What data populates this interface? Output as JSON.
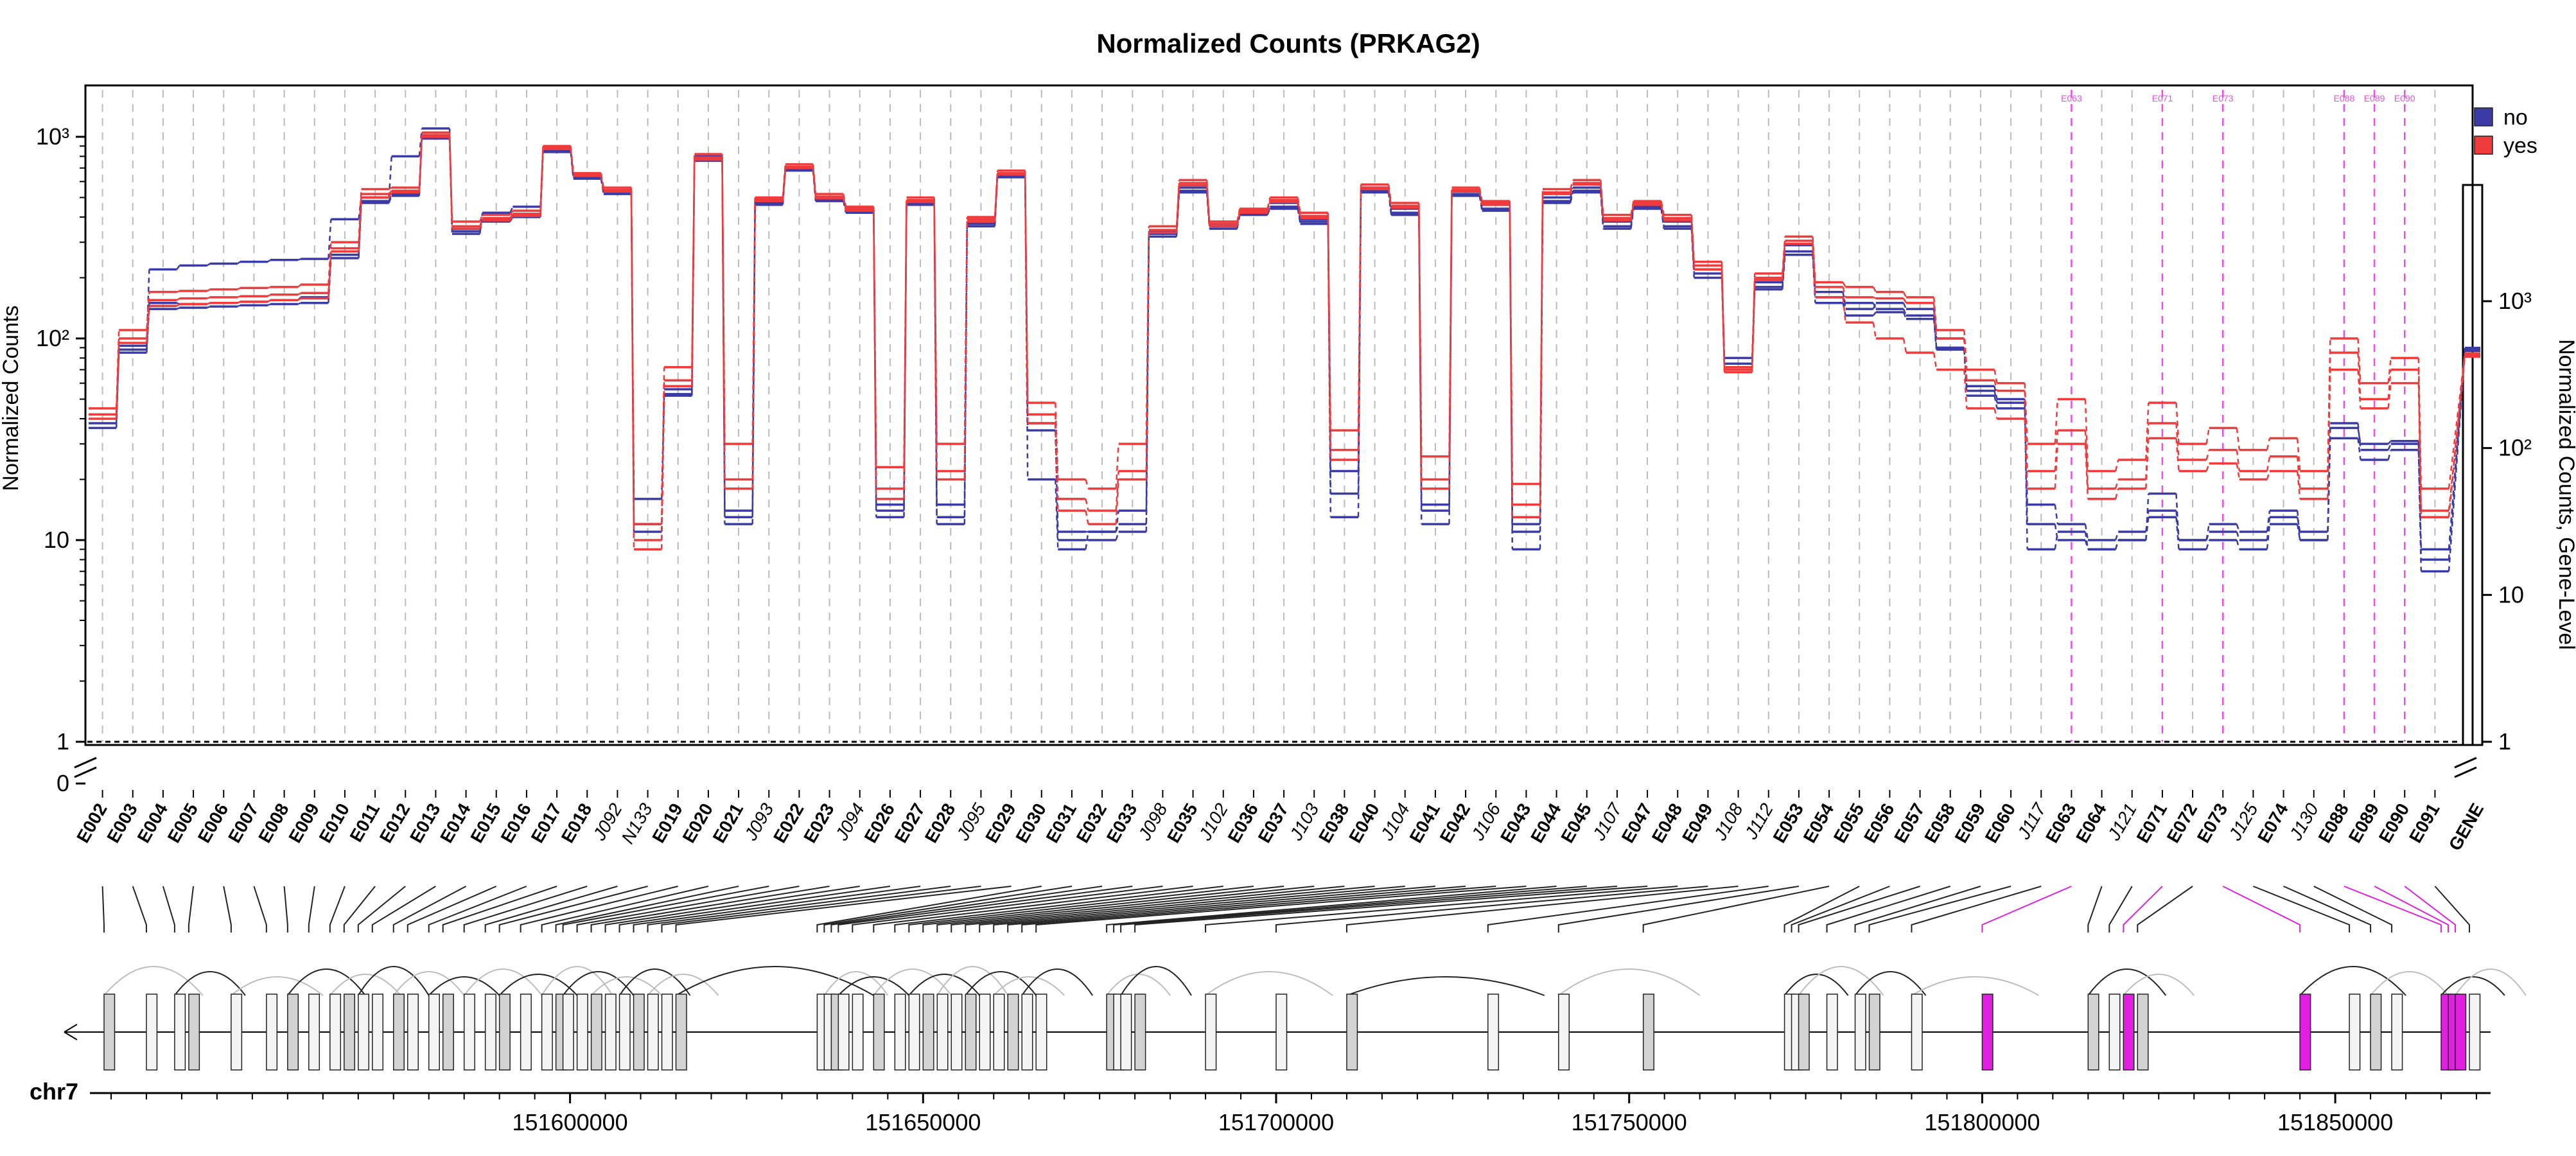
{
  "chart_data": {
    "type": "line",
    "title": "Normalized Counts (PRKAG2)",
    "ylabel": "Normalized Counts",
    "ylabel_right": "Normalized Counts, Gene-Level",
    "yscale": "log",
    "ylim": [
      1,
      1600
    ],
    "y_ticks": [
      "1",
      "10",
      "10²",
      "10³"
    ],
    "y_zero_label": "0",
    "y_ticks_right": [
      "1",
      "10",
      "10²",
      "10³"
    ],
    "legend": {
      "position": "top-right",
      "entries": [
        {
          "label": "no",
          "color": "#3b3ba8"
        },
        {
          "label": "yes",
          "color": "#ef3b3b"
        }
      ]
    },
    "features": [
      "E002",
      "E003",
      "E004",
      "E005",
      "E006",
      "E007",
      "E008",
      "E009",
      "E010",
      "E011",
      "E012",
      "E013",
      "E014",
      "E015",
      "E016",
      "E017",
      "E018",
      "J092",
      "N133",
      "E019",
      "E020",
      "E021",
      "J093",
      "E022",
      "E023",
      "J094",
      "E026",
      "E027",
      "E028",
      "J095",
      "E029",
      "E030",
      "E031",
      "E032",
      "E033",
      "J098",
      "E035",
      "J102",
      "E036",
      "E037",
      "J103",
      "E038",
      "E040",
      "J104",
      "E041",
      "E042",
      "J106",
      "E043",
      "E044",
      "E045",
      "J107",
      "E047",
      "E048",
      "E049",
      "J108",
      "J112",
      "E053",
      "E054",
      "E055",
      "E056",
      "E057",
      "E058",
      "E059",
      "E060",
      "J117",
      "E063",
      "E064",
      "J121",
      "E071",
      "E072",
      "E073",
      "J125",
      "E074",
      "J130",
      "E088",
      "E089",
      "E090",
      "E091"
    ],
    "gene_label": "GENE",
    "italic_features": [
      "J092",
      "N133",
      "J093",
      "J094",
      "J095",
      "J098",
      "J102",
      "J103",
      "J104",
      "J106",
      "J107",
      "J108",
      "J112",
      "J117",
      "J121",
      "J125",
      "J130"
    ],
    "highlighted_features": [
      "E063",
      "E071",
      "E073",
      "E088",
      "E089",
      "E090"
    ],
    "highlight_labels": [
      "E063",
      "E071",
      "E073",
      "E088",
      "E089",
      "E090"
    ],
    "series": [
      {
        "name": "no",
        "values": [
          38,
          92,
          220,
          230,
          235,
          240,
          245,
          248,
          390,
          500,
          800,
          1100,
          330,
          420,
          450,
          880,
          640,
          540,
          16,
          53,
          780,
          14,
          480,
          700,
          500,
          440,
          13,
          480,
          15,
          380,
          650,
          20,
          9,
          11,
          14,
          340,
          560,
          370,
          430,
          470,
          390,
          13,
          560,
          440,
          12,
          540,
          460,
          9,
          500,
          560,
          380,
          460,
          380,
          220,
          80,
          190,
          290,
          170,
          140,
          150,
          140,
          100,
          55,
          48,
          9,
          11,
          9,
          10,
          17,
          10,
          12,
          11,
          14,
          10,
          38,
          28,
          30,
          9
        ],
        "gene": 480
      },
      {
        "name": "no",
        "values": [
          42,
          85,
          150,
          148,
          150,
          152,
          155,
          160,
          260,
          480,
          520,
          1000,
          350,
          390,
          410,
          860,
          630,
          530,
          12,
          56,
          800,
          13,
          470,
          690,
          490,
          430,
          15,
          470,
          13,
          370,
          640,
          38,
          11,
          11,
          12,
          330,
          540,
          360,
          420,
          450,
          380,
          17,
          540,
          420,
          15,
          520,
          440,
          11,
          480,
          540,
          360,
          450,
          360,
          210,
          75,
          180,
          270,
          160,
          150,
          140,
          130,
          90,
          58,
          50,
          15,
          12,
          10,
          11,
          14,
          10,
          11,
          10,
          13,
          11,
          36,
          30,
          31,
          8
        ],
        "gene": 470
      },
      {
        "name": "no",
        "values": [
          36,
          88,
          140,
          142,
          144,
          146,
          148,
          150,
          250,
          470,
          510,
          980,
          340,
          380,
          400,
          840,
          620,
          520,
          11,
          52,
          760,
          12,
          460,
          680,
          480,
          420,
          14,
          460,
          12,
          360,
          630,
          35,
          10,
          10,
          11,
          320,
          530,
          350,
          410,
          440,
          370,
          22,
          530,
          410,
          14,
          510,
          430,
          12,
          470,
          530,
          350,
          440,
          350,
          200,
          70,
          175,
          260,
          150,
          130,
          135,
          125,
          88,
          52,
          45,
          12,
          10,
          9,
          10,
          13,
          9,
          10,
          9,
          12,
          10,
          32,
          25,
          28,
          7
        ],
        "gene": 460
      },
      {
        "name": "yes",
        "values": [
          45,
          110,
          170,
          172,
          175,
          178,
          180,
          185,
          300,
          550,
          560,
          1050,
          380,
          410,
          430,
          900,
          660,
          560,
          12,
          72,
          820,
          30,
          500,
          730,
          520,
          450,
          23,
          500,
          30,
          400,
          680,
          48,
          20,
          18,
          30,
          360,
          610,
          380,
          440,
          500,
          420,
          35,
          580,
          470,
          26,
          560,
          480,
          19,
          550,
          610,
          410,
          480,
          410,
          240,
          72,
          210,
          320,
          190,
          180,
          170,
          160,
          110,
          70,
          60,
          30,
          50,
          22,
          25,
          48,
          30,
          36,
          28,
          32,
          22,
          100,
          60,
          80,
          18
        ],
        "gene": 440
      },
      {
        "name": "yes",
        "values": [
          42,
          100,
          155,
          158,
          160,
          162,
          165,
          168,
          280,
          520,
          540,
          1020,
          360,
          395,
          415,
          880,
          650,
          545,
          10,
          62,
          790,
          20,
          490,
          710,
          505,
          440,
          18,
          485,
          22,
          390,
          660,
          42,
          16,
          14,
          22,
          345,
          590,
          370,
          430,
          485,
          405,
          28,
          560,
          455,
          20,
          545,
          470,
          15,
          530,
          590,
          395,
          470,
          395,
          230,
          70,
          200,
          305,
          180,
          160,
          158,
          150,
          100,
          62,
          55,
          22,
          35,
          18,
          20,
          38,
          25,
          28,
          22,
          26,
          18,
          85,
          50,
          70,
          14
        ],
        "gene": 430
      },
      {
        "name": "yes",
        "values": [
          40,
          95,
          145,
          148,
          150,
          152,
          155,
          158,
          270,
          500,
          530,
          1000,
          350,
          385,
          405,
          870,
          640,
          535,
          9,
          58,
          770,
          18,
          480,
          700,
          495,
          430,
          16,
          475,
          20,
          380,
          650,
          38,
          14,
          12,
          20,
          335,
          575,
          360,
          420,
          475,
          395,
          25,
          550,
          445,
          18,
          535,
          460,
          13,
          520,
          580,
          385,
          460,
          385,
          220,
          68,
          195,
          295,
          160,
          120,
          100,
          85,
          70,
          45,
          40,
          18,
          30,
          16,
          18,
          32,
          22,
          24,
          20,
          22,
          16,
          70,
          45,
          60,
          13
        ],
        "gene": 420
      }
    ],
    "genomic_axis": {
      "chromosome": "chr7",
      "range": [
        151532000,
        151872000
      ],
      "ticks": [
        "151600000",
        "151650000",
        "151700000",
        "151750000",
        "151800000",
        "151850000"
      ],
      "tick_values": [
        151600000,
        151650000,
        151700000,
        151750000,
        151800000,
        151850000
      ]
    }
  }
}
